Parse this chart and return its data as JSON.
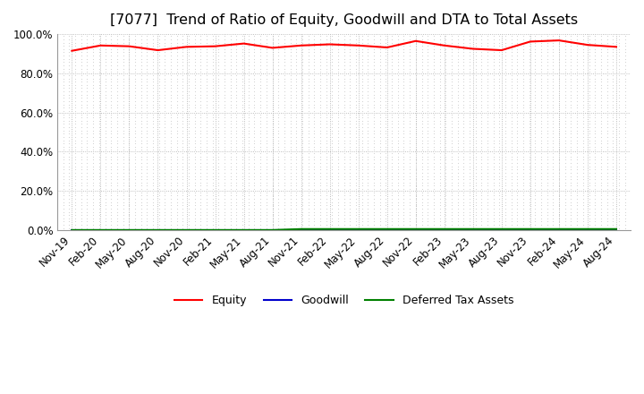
{
  "title": "[7077]  Trend of Ratio of Equity, Goodwill and DTA to Total Assets",
  "title_fontsize": 11.5,
  "x_labels": [
    "Nov-19",
    "Feb-20",
    "May-20",
    "Aug-20",
    "Nov-20",
    "Feb-21",
    "May-21",
    "Aug-21",
    "Nov-21",
    "Feb-22",
    "May-22",
    "Aug-22",
    "Nov-22",
    "Feb-23",
    "May-23",
    "Aug-23",
    "Nov-23",
    "Feb-24",
    "May-24",
    "Aug-24"
  ],
  "equity": [
    91.5,
    94.2,
    93.8,
    91.8,
    93.5,
    93.8,
    95.2,
    93.0,
    94.2,
    94.8,
    94.2,
    93.2,
    96.5,
    94.2,
    92.5,
    91.8,
    96.2,
    96.8,
    94.5,
    93.5
  ],
  "goodwill": [
    0.0,
    0.0,
    0.0,
    0.0,
    0.0,
    0.0,
    0.0,
    0.0,
    0.0,
    0.0,
    0.0,
    0.0,
    0.0,
    0.0,
    0.0,
    0.0,
    0.0,
    0.0,
    0.0,
    0.0
  ],
  "dta": [
    0.0,
    0.0,
    0.0,
    0.0,
    0.0,
    0.0,
    0.0,
    0.0,
    0.5,
    0.5,
    0.5,
    0.5,
    0.5,
    0.5,
    0.5,
    0.5,
    0.5,
    0.5,
    0.5,
    0.5
  ],
  "equity_color": "#ff0000",
  "goodwill_color": "#0000cc",
  "dta_color": "#008000",
  "ylim": [
    0,
    100
  ],
  "yticks": [
    0,
    20,
    40,
    60,
    80,
    100
  ],
  "bg_color": "#ffffff",
  "grid_color": "#aaaaaa",
  "dot_color": "#c8c8c8"
}
